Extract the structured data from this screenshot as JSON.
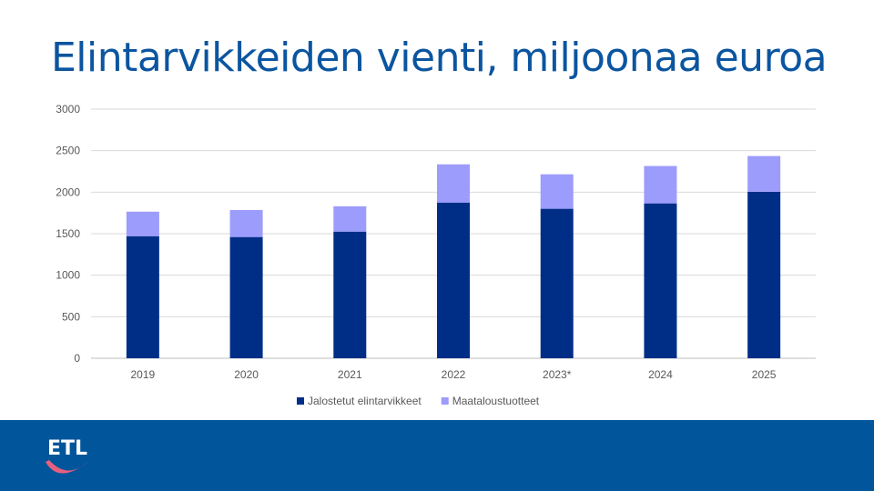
{
  "title": "Elintarvikkeiden vienti, miljoonaa euroa",
  "logo_text": "ETL",
  "colors": {
    "title": "#0b55a0",
    "processed": "#002e87",
    "agri": "#9c9cfc",
    "footer": "#00559b",
    "logo_smile": "#e8607e"
  },
  "chart_data": {
    "type": "bar",
    "stacked": true,
    "title": "Elintarvikkeiden vienti, miljoonaa euroa",
    "xlabel": "",
    "ylabel": "",
    "categories": [
      "2019",
      "2020",
      "2021",
      "2022",
      "2023*",
      "2024",
      "2025"
    ],
    "series": [
      {
        "name": "Jalostetut elintarvikkeet",
        "color": "#002e87",
        "values": [
          1470,
          1460,
          1525,
          1875,
          1800,
          1865,
          2005
        ]
      },
      {
        "name": "Maataloustuotteet",
        "color": "#9c9cfc",
        "values": [
          295,
          325,
          305,
          460,
          415,
          450,
          430
        ]
      }
    ],
    "ylim": [
      0,
      3000
    ],
    "yticks": [
      "0",
      "500",
      "1000",
      "1500",
      "2000",
      "2500",
      "3000"
    ],
    "grid": true,
    "legend": "bottom"
  }
}
